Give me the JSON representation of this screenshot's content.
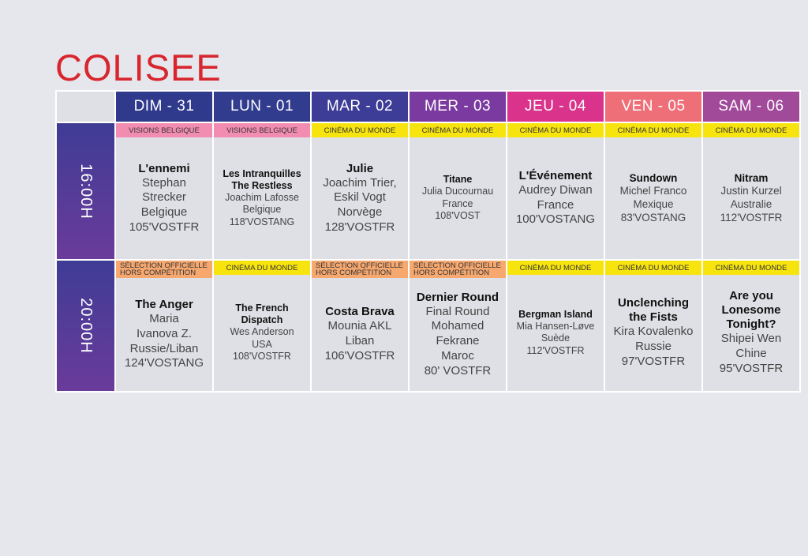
{
  "venue": "COLISEE",
  "days": [
    {
      "label": "DIM - 31",
      "color": "#2f3a8c"
    },
    {
      "label": "LUN - 01",
      "color": "#313c8f"
    },
    {
      "label": "MAR - 02",
      "color": "#3d3c96"
    },
    {
      "label": "MER - 03",
      "color": "#7a3aa0"
    },
    {
      "label": "JEU - 04",
      "color": "#d9338c"
    },
    {
      "label": "VEN - 05",
      "color": "#ef6f78"
    },
    {
      "label": "SAM - 06",
      "color": "#a14a9a"
    }
  ],
  "slots": [
    {
      "time": "16:00H",
      "cells": [
        {
          "tag": "VISIONS BELGIQUE",
          "tag_color": "#f28cb1",
          "size": "l",
          "title": "L'ennemi",
          "lines": [
            "Stephan",
            "Strecker",
            "Belgique",
            "105'VOSTFR"
          ]
        },
        {
          "tag": "VISIONS BELGIQUE",
          "tag_color": "#f28cb1",
          "size": "s",
          "title": "Les Intranquilles\nThe Restless",
          "lines": [
            "Joachim Lafosse",
            "Belgique",
            "118'VOSTANG"
          ]
        },
        {
          "tag": "CINÉMA DU MONDE",
          "tag_color": "#f7e40f",
          "size": "l",
          "title": "Julie",
          "lines": [
            "Joachim Trier,",
            "Eskil Vogt",
            "Norvège",
            "128'VOSTFR"
          ]
        },
        {
          "tag": "CINÉMA DU MONDE",
          "tag_color": "#f7e40f",
          "size": "s",
          "title": "Titane",
          "lines": [
            "Julia Ducournau",
            "France",
            "108'VOST"
          ]
        },
        {
          "tag": "CINÉMA DU MONDE",
          "tag_color": "#f7e40f",
          "size": "l",
          "title": "L'Événement",
          "lines": [
            "Audrey Diwan",
            "France",
            "100'VOSTANG"
          ]
        },
        {
          "tag": "CINÉMA DU MONDE",
          "tag_color": "#f7e40f",
          "size": "m",
          "title": "Sundown",
          "lines": [
            "Michel Franco",
            "Mexique",
            "83'VOSTANG"
          ]
        },
        {
          "tag": "CINÉMA DU MONDE",
          "tag_color": "#f7e40f",
          "size": "m",
          "title": "Nitram",
          "lines": [
            "Justin Kurzel",
            "Australie",
            "112'VOSTFR"
          ]
        }
      ]
    },
    {
      "time": "20:00H",
      "cells": [
        {
          "tag": "SÉLECTION OFFICIELLE\nHORS COMPÉTITION",
          "tag_color": "#f6a86f",
          "size": "l",
          "title": "The Anger",
          "lines": [
            "Maria",
            "Ivanova Z.",
            "Russie/Liban",
            "124'VOSTANG"
          ]
        },
        {
          "tag": "CINÉMA DU MONDE",
          "tag_color": "#f7e40f",
          "size": "s",
          "title": "The French\nDispatch",
          "lines": [
            "Wes Anderson",
            "USA",
            "108'VOSTFR"
          ]
        },
        {
          "tag": "SÉLECTION OFFICIELLE\nHORS COMPÉTITION",
          "tag_color": "#f6a86f",
          "size": "l",
          "title": "Costa Brava",
          "lines": [
            "Mounia AKL",
            "Liban",
            "106'VOSTFR"
          ]
        },
        {
          "tag": "SÉLECTION OFFICIELLE\nHORS COMPÉTITION",
          "tag_color": "#f6a86f",
          "size": "l",
          "title": "Dernier Round",
          "lines": [
            "Final Round",
            "Mohamed",
            "Fekrane",
            "Maroc",
            "80' VOSTFR"
          ]
        },
        {
          "tag": "CINÉMA DU MONDE",
          "tag_color": "#f7e40f",
          "size": "s",
          "title": "Bergman Island",
          "lines": [
            "Mia Hansen-Løve",
            "Suède",
            "112'VOSTFR"
          ]
        },
        {
          "tag": "CINÉMA DU MONDE",
          "tag_color": "#f7e40f",
          "size": "l",
          "title": "Unclenching\nthe Fists",
          "lines": [
            "Kira Kovalenko",
            "Russie",
            "97'VOSTFR"
          ]
        },
        {
          "tag": "CINÉMA DU MONDE",
          "tag_color": "#f7e40f",
          "size": "l",
          "title": "Are you\nLonesome\nTonight?",
          "lines": [
            "Shipei Wen",
            "Chine",
            "95'VOSTFR"
          ]
        }
      ]
    }
  ]
}
